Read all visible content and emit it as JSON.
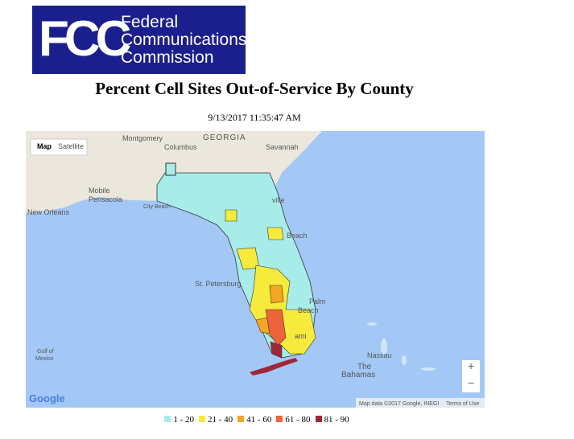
{
  "header": {
    "logo": {
      "mark": "FCC",
      "lines": [
        "Federal",
        "Communications",
        "Commission"
      ]
    },
    "title": "Percent Cell Sites Out-of-Service By County",
    "timestamp": "9/13/2017 11:35:47 AM"
  },
  "map": {
    "controls": {
      "map": "Map",
      "satellite": "Satellite",
      "zoom_in": "+",
      "zoom_out": "−"
    },
    "labels": [
      "Montgomery",
      "GEORGIA",
      "Columbus",
      "Savannah",
      "Mobile",
      "Pensacola",
      "City Beach",
      "ville",
      "New Orleans",
      "Beach",
      "St. Petersburg",
      "Palm",
      "Beach",
      "ami",
      "Gulf of",
      "Mexico",
      "Nassau",
      "The",
      "Bahamas"
    ],
    "attribution": "Map data ©2017 Google, INEGI",
    "terms": "Terms of Use",
    "brand": "Google"
  },
  "legend": {
    "items": [
      {
        "label": "1 - 20",
        "color": "#a8ecea"
      },
      {
        "label": "21 - 40",
        "color": "#f6ea3c"
      },
      {
        "label": "41 - 60",
        "color": "#f5a623"
      },
      {
        "label": "61 - 80",
        "color": "#f0633a"
      },
      {
        "label": "81 - 90",
        "color": "#a0263a"
      }
    ]
  }
}
